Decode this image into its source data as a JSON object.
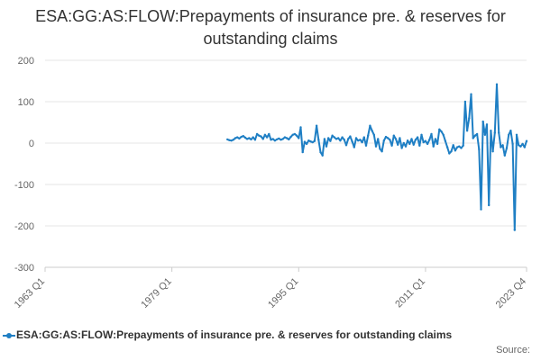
{
  "chart_data": {
    "type": "line",
    "title": "ESA:GG:AS:FLOW:Prepayments of insurance pre. & reserves for outstanding claims",
    "x_ticks": [
      "1963 Q1",
      "1979 Q1",
      "1995 Q1",
      "2011 Q1",
      "2023 Q4"
    ],
    "y_ticks": [
      "200",
      "100",
      "0",
      "-100",
      "-200",
      "-300"
    ],
    "ylim": [
      -300,
      200
    ],
    "xlim": [
      1963.0,
      2023.75
    ],
    "grid": true,
    "legend_position": "bottom",
    "series": [
      {
        "name": "ESA:GG:AS:FLOW:Prepayments of insurance pre. & reserves for outstanding claims",
        "color": "#1f7fc4",
        "points": [
          [
            1986.0,
            9
          ],
          [
            1986.25,
            7
          ],
          [
            1986.5,
            6
          ],
          [
            1986.75,
            8
          ],
          [
            1987.0,
            12
          ],
          [
            1987.25,
            14
          ],
          [
            1987.5,
            11
          ],
          [
            1987.75,
            15
          ],
          [
            1988.0,
            17
          ],
          [
            1988.25,
            13
          ],
          [
            1988.5,
            10
          ],
          [
            1988.75,
            12
          ],
          [
            1989.0,
            9
          ],
          [
            1989.25,
            14
          ],
          [
            1989.5,
            8
          ],
          [
            1989.75,
            22
          ],
          [
            1990.0,
            18
          ],
          [
            1990.25,
            16
          ],
          [
            1990.5,
            10
          ],
          [
            1990.75,
            20
          ],
          [
            1991.0,
            14
          ],
          [
            1991.25,
            22
          ],
          [
            1991.5,
            8
          ],
          [
            1991.75,
            10
          ],
          [
            1992.0,
            6
          ],
          [
            1992.25,
            9
          ],
          [
            1992.5,
            11
          ],
          [
            1992.75,
            8
          ],
          [
            1993.0,
            10
          ],
          [
            1993.25,
            14
          ],
          [
            1993.5,
            12
          ],
          [
            1993.75,
            9
          ],
          [
            1994.0,
            15
          ],
          [
            1994.25,
            20
          ],
          [
            1994.5,
            22
          ],
          [
            1994.75,
            18
          ],
          [
            1995.0,
            12
          ],
          [
            1995.25,
            38
          ],
          [
            1995.5,
            -22
          ],
          [
            1995.75,
            3
          ],
          [
            1996.0,
            -2
          ],
          [
            1996.25,
            6
          ],
          [
            1996.5,
            4
          ],
          [
            1996.75,
            2
          ],
          [
            1997.0,
            5
          ],
          [
            1997.25,
            42
          ],
          [
            1997.5,
            8
          ],
          [
            1997.75,
            -22
          ],
          [
            1998.0,
            -30
          ],
          [
            1998.25,
            10
          ],
          [
            1998.5,
            -8
          ],
          [
            1998.75,
            12
          ],
          [
            1999.0,
            5
          ],
          [
            1999.25,
            18
          ],
          [
            1999.5,
            14
          ],
          [
            1999.75,
            10
          ],
          [
            2000.0,
            12
          ],
          [
            2000.25,
            6
          ],
          [
            2000.5,
            14
          ],
          [
            2000.75,
            8
          ],
          [
            2001.0,
            -5
          ],
          [
            2001.25,
            10
          ],
          [
            2001.5,
            16
          ],
          [
            2001.75,
            4
          ],
          [
            2002.0,
            -10
          ],
          [
            2002.25,
            12
          ],
          [
            2002.5,
            6
          ],
          [
            2002.75,
            8
          ],
          [
            2003.0,
            2
          ],
          [
            2003.25,
            14
          ],
          [
            2003.5,
            -6
          ],
          [
            2003.75,
            18
          ],
          [
            2004.0,
            42
          ],
          [
            2004.25,
            30
          ],
          [
            2004.5,
            20
          ],
          [
            2004.75,
            -8
          ],
          [
            2005.0,
            10
          ],
          [
            2005.25,
            -14
          ],
          [
            2005.5,
            -20
          ],
          [
            2005.75,
            6
          ],
          [
            2006.0,
            15
          ],
          [
            2006.25,
            12
          ],
          [
            2006.5,
            8
          ],
          [
            2006.75,
            -6
          ],
          [
            2007.0,
            18
          ],
          [
            2007.25,
            10
          ],
          [
            2007.5,
            -4
          ],
          [
            2007.75,
            12
          ],
          [
            2008.0,
            -12
          ],
          [
            2008.25,
            0
          ],
          [
            2008.5,
            -8
          ],
          [
            2008.75,
            6
          ],
          [
            2009.0,
            -2
          ],
          [
            2009.25,
            10
          ],
          [
            2009.5,
            -4
          ],
          [
            2009.75,
            8
          ],
          [
            2010.0,
            14
          ],
          [
            2010.25,
            -6
          ],
          [
            2010.5,
            20
          ],
          [
            2010.75,
            2
          ],
          [
            2011.0,
            5
          ],
          [
            2011.25,
            -2
          ],
          [
            2011.5,
            8
          ],
          [
            2011.75,
            22
          ],
          [
            2012.0,
            -8
          ],
          [
            2012.25,
            10
          ],
          [
            2012.5,
            -2
          ],
          [
            2012.75,
            33
          ],
          [
            2013.0,
            28
          ],
          [
            2013.25,
            20
          ],
          [
            2013.5,
            5
          ],
          [
            2013.75,
            -10
          ],
          [
            2014.0,
            -25
          ],
          [
            2014.25,
            -20
          ],
          [
            2014.5,
            -5
          ],
          [
            2014.75,
            -18
          ],
          [
            2015.0,
            -10
          ],
          [
            2015.25,
            -8
          ],
          [
            2015.5,
            -12
          ],
          [
            2015.75,
            -6
          ],
          [
            2016.0,
            100
          ],
          [
            2016.25,
            30
          ],
          [
            2016.5,
            60
          ],
          [
            2016.75,
            118
          ],
          [
            2017.0,
            12
          ],
          [
            2017.25,
            18
          ],
          [
            2017.5,
            22
          ],
          [
            2017.75,
            -15
          ],
          [
            2018.0,
            -160
          ],
          [
            2018.25,
            52
          ],
          [
            2018.5,
            20
          ],
          [
            2018.75,
            45
          ],
          [
            2019.0,
            -150
          ],
          [
            2019.25,
            30
          ],
          [
            2019.5,
            -20
          ],
          [
            2019.75,
            25
          ],
          [
            2020.0,
            142
          ],
          [
            2020.25,
            25
          ],
          [
            2020.5,
            -10
          ],
          [
            2020.75,
            -5
          ],
          [
            2021.0,
            -30
          ],
          [
            2021.25,
            -12
          ],
          [
            2021.5,
            20
          ],
          [
            2021.75,
            30
          ],
          [
            2022.0,
            -2
          ],
          [
            2022.25,
            -210
          ],
          [
            2022.5,
            20
          ],
          [
            2022.75,
            -5
          ],
          [
            2023.0,
            -8
          ],
          [
            2023.25,
            -2
          ],
          [
            2023.5,
            -10
          ],
          [
            2023.75,
            5
          ]
        ]
      }
    ]
  },
  "legend": {
    "label": "ESA:GG:AS:FLOW:Prepayments of insurance pre. & reserves for outstanding claims"
  },
  "source": {
    "label": "Source:"
  }
}
